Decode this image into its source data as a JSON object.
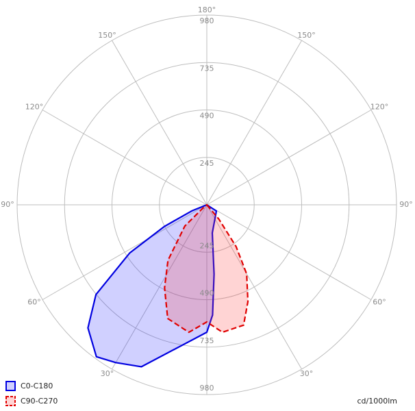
{
  "chart_data": {
    "type": "polar",
    "rlim": [
      0,
      980
    ],
    "rticks": [
      245,
      490,
      735,
      980
    ],
    "angle_ticks": [
      {
        "value": 180,
        "label": "180°"
      },
      {
        "value": 150,
        "label": "150°"
      },
      {
        "value": -150,
        "label": "150°"
      },
      {
        "value": 120,
        "label": "120°"
      },
      {
        "value": -120,
        "label": "120°"
      },
      {
        "value": 90,
        "label": "90°"
      },
      {
        "value": -90,
        "label": "90°"
      },
      {
        "value": 60,
        "label": "60°"
      },
      {
        "value": -60,
        "label": "60°"
      },
      {
        "value": 30,
        "label": "30°"
      },
      {
        "value": -30,
        "label": "30°"
      }
    ],
    "unit_label": "cd/1000lm",
    "legend": "bottom-left",
    "series": [
      {
        "name": "C0-C180",
        "color": "#0000e0",
        "fill": "rgba(40,40,255,0.22)",
        "dashed": false,
        "x": [
          57,
          11,
          6,
          3,
          0,
          -22,
          -30,
          -36,
          -44,
          -51,
          -58,
          -63,
          -68
        ],
        "values": [
          59,
          148,
          360,
          570,
          658,
          902,
          941,
          970,
          884,
          737,
          470,
          245,
          84
        ]
      },
      {
        "name": "C90-C270",
        "color": "#e00000",
        "fill": "rgba(255,60,60,0.22)",
        "dashed": true,
        "x": [
          40,
          35,
          30,
          23,
          17,
          7,
          0,
          -8,
          -19,
          -27,
          -35,
          -46,
          -49
        ],
        "values": [
          98,
          264,
          412,
          543,
          650,
          663,
          605,
          665,
          621,
          481,
          350,
          158,
          33
        ]
      }
    ]
  }
}
